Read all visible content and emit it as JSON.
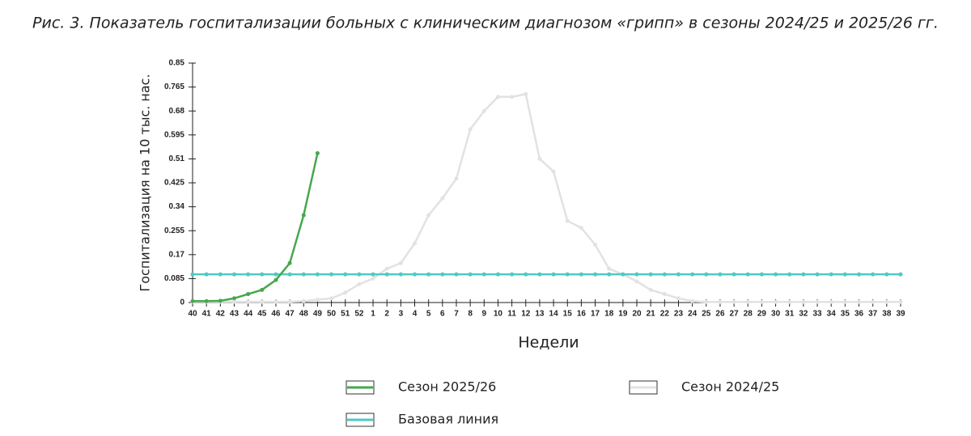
{
  "chart_data": {
    "type": "line",
    "title": "Рис. 3. Показатель госпитализации больных с клиническим диагнозом «грипп» в сезоны 2024/25 и 2025/26 гг.",
    "x_label": "Недели",
    "y_label": "Госпитализация на 10 тыс. нас.",
    "categories": [
      "40",
      "41",
      "42",
      "43",
      "44",
      "45",
      "46",
      "47",
      "48",
      "49",
      "50",
      "51",
      "52",
      "1",
      "2",
      "3",
      "4",
      "5",
      "6",
      "7",
      "8",
      "9",
      "10",
      "11",
      "12",
      "13",
      "14",
      "15",
      "16",
      "17",
      "18",
      "19",
      "20",
      "21",
      "22",
      "23",
      "24",
      "25",
      "26",
      "27",
      "28",
      "29",
      "30",
      "31",
      "32",
      "33",
      "34",
      "35",
      "36",
      "37",
      "38",
      "39"
    ],
    "ylim": [
      0,
      0.85
    ],
    "yticks": [
      0,
      0.085,
      0.17,
      0.255,
      0.34,
      0.425,
      0.51,
      0.595,
      0.68,
      0.765,
      0.85
    ],
    "series": [
      {
        "name": "Сезон 2025/26",
        "color": "#46a84d",
        "values": [
          0.005,
          0.005,
          0.006,
          0.015,
          0.03,
          0.045,
          0.08,
          0.14,
          0.31,
          0.53,
          null,
          null,
          null,
          null,
          null,
          null,
          null,
          null,
          null,
          null,
          null,
          null,
          null,
          null,
          null,
          null,
          null,
          null,
          null,
          null,
          null,
          null,
          null,
          null,
          null,
          null,
          null,
          null,
          null,
          null,
          null,
          null,
          null,
          null,
          null,
          null,
          null,
          null,
          null,
          null,
          null,
          null
        ]
      },
      {
        "name": "Сезон 2024/25",
        "color": "#e2e2e2",
        "values": [
          0.003,
          0.003,
          0.003,
          0.003,
          0.003,
          0.003,
          0.003,
          0.003,
          0.005,
          0.01,
          0.015,
          0.035,
          0.065,
          0.085,
          0.12,
          0.14,
          0.21,
          0.31,
          0.37,
          0.44,
          0.615,
          0.68,
          0.73,
          0.73,
          0.74,
          0.51,
          0.465,
          0.29,
          0.265,
          0.205,
          0.12,
          0.1,
          0.075,
          0.045,
          0.03,
          0.015,
          0.005,
          0.002,
          0.002,
          0.002,
          0.002,
          0.002,
          0.002,
          0.002,
          0.002,
          0.002,
          0.002,
          0.002,
          0.002,
          0.002,
          0.002,
          0.002
        ]
      },
      {
        "name": "Базовая линия",
        "color": "#4fc9c4",
        "values": [
          0.1,
          0.1,
          0.1,
          0.1,
          0.1,
          0.1,
          0.1,
          0.1,
          0.1,
          0.1,
          0.1,
          0.1,
          0.1,
          0.1,
          0.1,
          0.1,
          0.1,
          0.1,
          0.1,
          0.1,
          0.1,
          0.1,
          0.1,
          0.1,
          0.1,
          0.1,
          0.1,
          0.1,
          0.1,
          0.1,
          0.1,
          0.1,
          0.1,
          0.1,
          0.1,
          0.1,
          0.1,
          0.1,
          0.1,
          0.1,
          0.1,
          0.1,
          0.1,
          0.1,
          0.1,
          0.1,
          0.1,
          0.1,
          0.1,
          0.1,
          0.1,
          0.1
        ]
      }
    ]
  }
}
